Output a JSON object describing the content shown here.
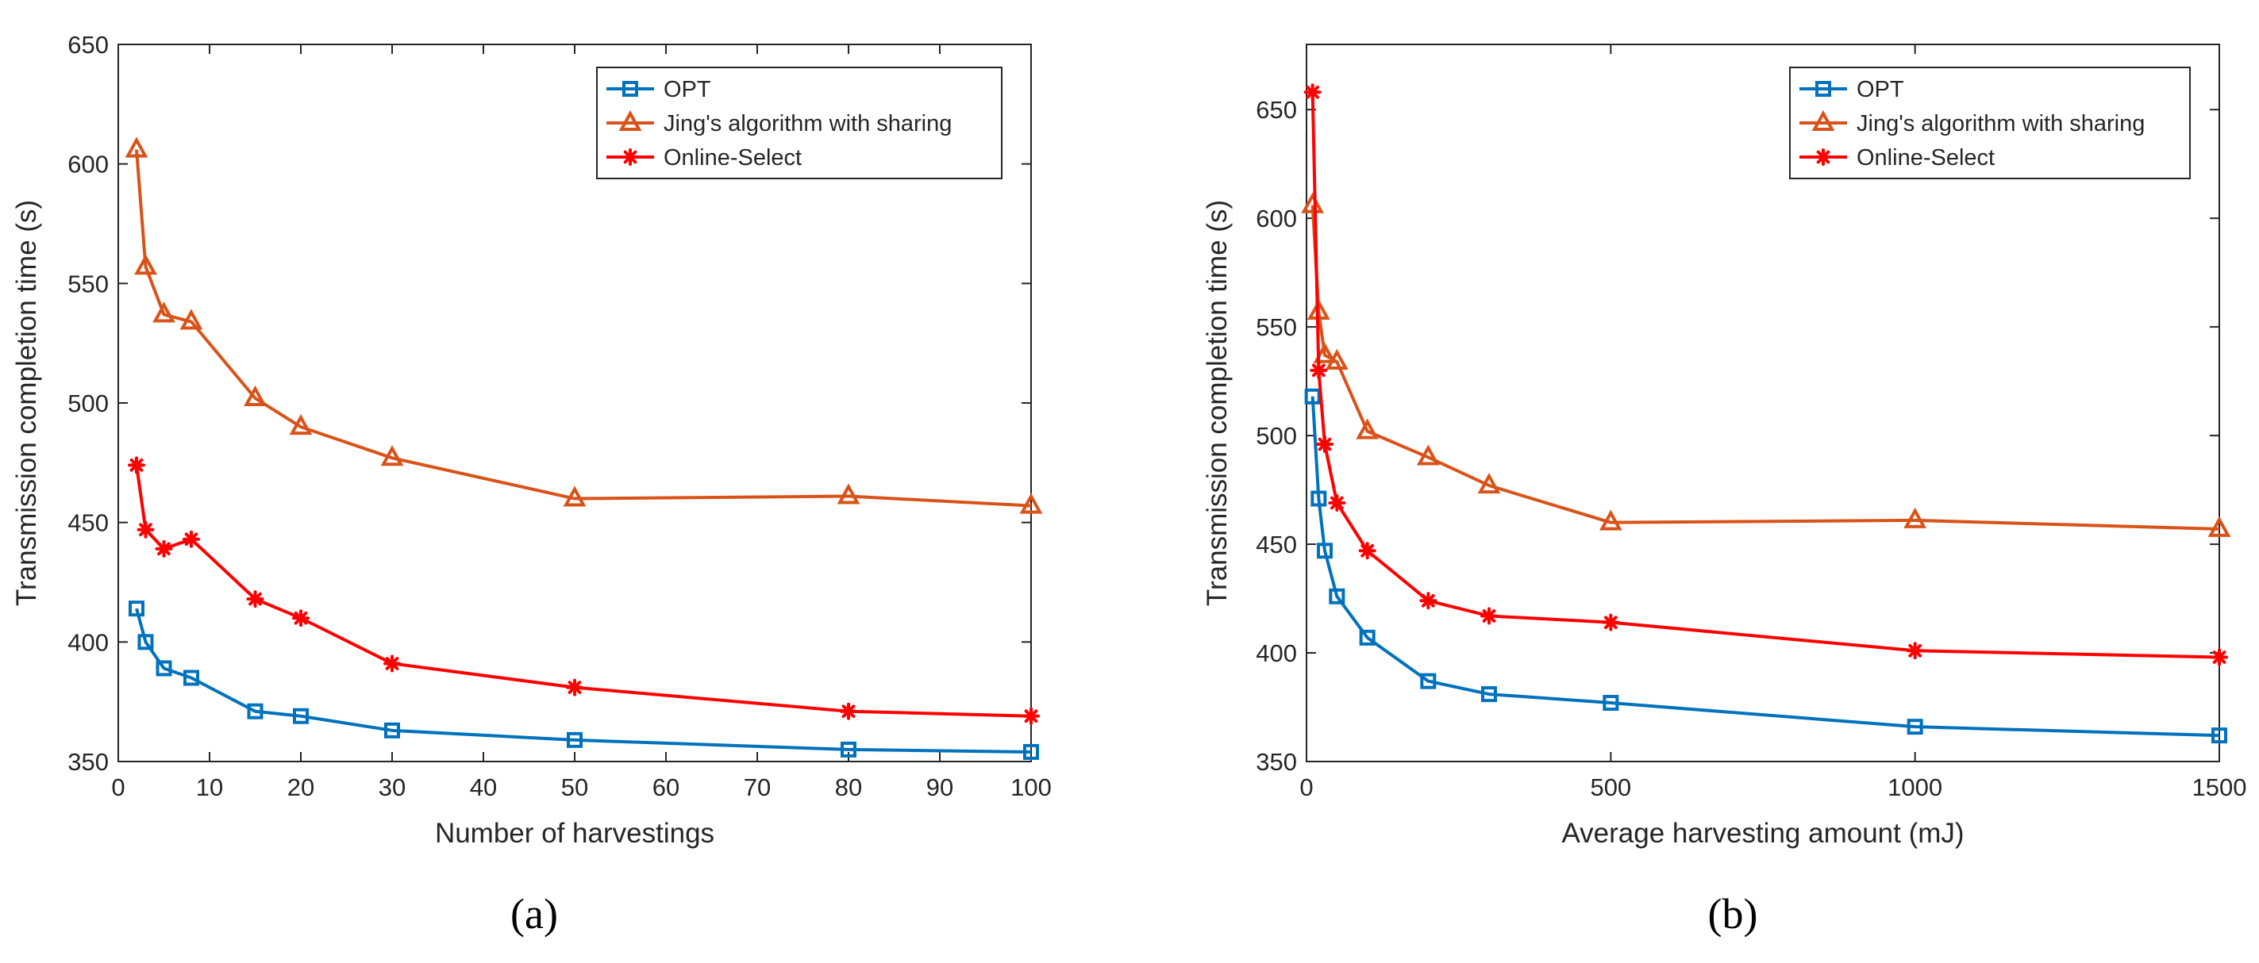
{
  "colors": {
    "opt": "#0072bd",
    "jing": "#d95319",
    "online": "#ff0000",
    "axis": "#262626"
  },
  "chart_data": [
    {
      "type": "line",
      "caption": "(a)",
      "xlabel": "Number of harvestings",
      "ylabel": "Transmission completion time (s)",
      "xlim": [
        0,
        100
      ],
      "ylim": [
        350,
        650
      ],
      "xticks": [
        0,
        10,
        20,
        30,
        40,
        50,
        60,
        70,
        80,
        90,
        100
      ],
      "yticks": [
        350,
        400,
        450,
        500,
        550,
        600,
        650
      ],
      "legend_position": "top-right",
      "series": [
        {
          "name": "OPT",
          "marker": "square",
          "color_key": "opt",
          "x": [
            2,
            3,
            5,
            8,
            15,
            20,
            30,
            50,
            80,
            100
          ],
          "values": [
            414,
            400,
            389,
            385,
            371,
            369,
            363,
            359,
            355,
            354
          ]
        },
        {
          "name": "Jing's algorithm with sharing",
          "marker": "triangle",
          "color_key": "jing",
          "x": [
            2,
            3,
            5,
            8,
            15,
            20,
            30,
            50,
            80,
            100
          ],
          "values": [
            606,
            557,
            537,
            534,
            502,
            490,
            477,
            460,
            461,
            457
          ]
        },
        {
          "name": "Online-Select",
          "marker": "star",
          "color_key": "online",
          "x": [
            2,
            3,
            5,
            8,
            15,
            20,
            30,
            50,
            80,
            100
          ],
          "values": [
            474,
            447,
            439,
            443,
            418,
            410,
            391,
            381,
            371,
            369
          ]
        }
      ]
    },
    {
      "type": "line",
      "caption": "(b)",
      "xlabel": "Average harvesting amount (mJ)",
      "ylabel": "Transmission completion time (s)",
      "xlim": [
        0,
        1500
      ],
      "ylim": [
        350,
        680
      ],
      "xticks": [
        0,
        500,
        1000,
        1500
      ],
      "yticks": [
        350,
        400,
        450,
        500,
        550,
        600,
        650
      ],
      "legend_position": "top-right",
      "series": [
        {
          "name": "OPT",
          "marker": "square",
          "color_key": "opt",
          "x": [
            10,
            20,
            30,
            50,
            100,
            200,
            300,
            500,
            1000,
            1500
          ],
          "values": [
            518,
            471,
            447,
            426,
            407,
            387,
            381,
            377,
            366,
            362
          ]
        },
        {
          "name": "Jing's algorithm with sharing",
          "marker": "triangle",
          "color_key": "jing",
          "x": [
            10,
            20,
            30,
            50,
            100,
            200,
            300,
            500,
            1000,
            1500
          ],
          "values": [
            606,
            557,
            537,
            534,
            502,
            490,
            477,
            460,
            461,
            457
          ]
        },
        {
          "name": "Online-Select",
          "marker": "star",
          "color_key": "online",
          "x": [
            10,
            20,
            30,
            50,
            100,
            200,
            300,
            500,
            1000,
            1500
          ],
          "values": [
            658,
            530,
            496,
            469,
            447,
            424,
            417,
            414,
            401,
            398
          ]
        }
      ]
    }
  ]
}
